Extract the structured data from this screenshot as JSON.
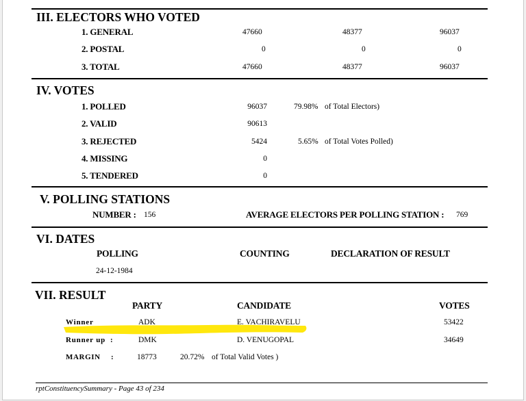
{
  "sections": {
    "electors": {
      "title": "III.  ELECTORS WHO VOTED",
      "rows": [
        {
          "label": "1. GENERAL",
          "v1": "47660",
          "v2": "48377",
          "v3": "96037"
        },
        {
          "label": "2. POSTAL",
          "v1": "0",
          "v2": "0",
          "v3": "0"
        },
        {
          "label": "3. TOTAL",
          "v1": "47660",
          "v2": "48377",
          "v3": "96037"
        }
      ]
    },
    "votes": {
      "title": "IV.  VOTES",
      "rows": [
        {
          "label": "1. POLLED",
          "value": "96037",
          "pct": "79.98%",
          "note": "of Total Electors)"
        },
        {
          "label": "2. VALID",
          "value": "90613",
          "pct": "",
          "note": ""
        },
        {
          "label": "3. REJECTED",
          "value": "5424",
          "pct": "5.65%",
          "note": "of Total Votes Polled)"
        },
        {
          "label": "4. MISSING",
          "value": "0",
          "pct": "",
          "note": ""
        },
        {
          "label": "5. TENDERED",
          "value": "0",
          "pct": "",
          "note": ""
        }
      ]
    },
    "polling": {
      "title": "V.  POLLING STATIONS",
      "number_label": "NUMBER :",
      "number_value": "156",
      "avg_label": "AVERAGE ELECTORS PER POLLING STATION :",
      "avg_value": "769"
    },
    "dates": {
      "title": "VI.  DATES",
      "polling_label": "POLLING",
      "counting_label": "COUNTING",
      "declaration_label": "DECLARATION OF RESULT",
      "polling_date": "24-12-1984"
    },
    "result": {
      "title": "VII. RESULT",
      "headers": {
        "party": "PARTY",
        "candidate": "CANDIDATE",
        "votes": "VOTES"
      },
      "winner": {
        "label": "Winner",
        "party": "ADK",
        "candidate": "E. VACHIRAVELU",
        "votes": "53422"
      },
      "runner_up": {
        "label": "Runner up",
        "colon": ":",
        "party": "DMK",
        "candidate": "D. VENUGOPAL",
        "votes": "34649"
      },
      "margin": {
        "label": "MARGIN",
        "colon": ":",
        "value": "18773",
        "pct": "20.72%",
        "note": "of Total Valid Votes )"
      }
    }
  },
  "footer": "rptConstituencySummary - Page 43 of  234",
  "highlight_color": "#ffe600"
}
